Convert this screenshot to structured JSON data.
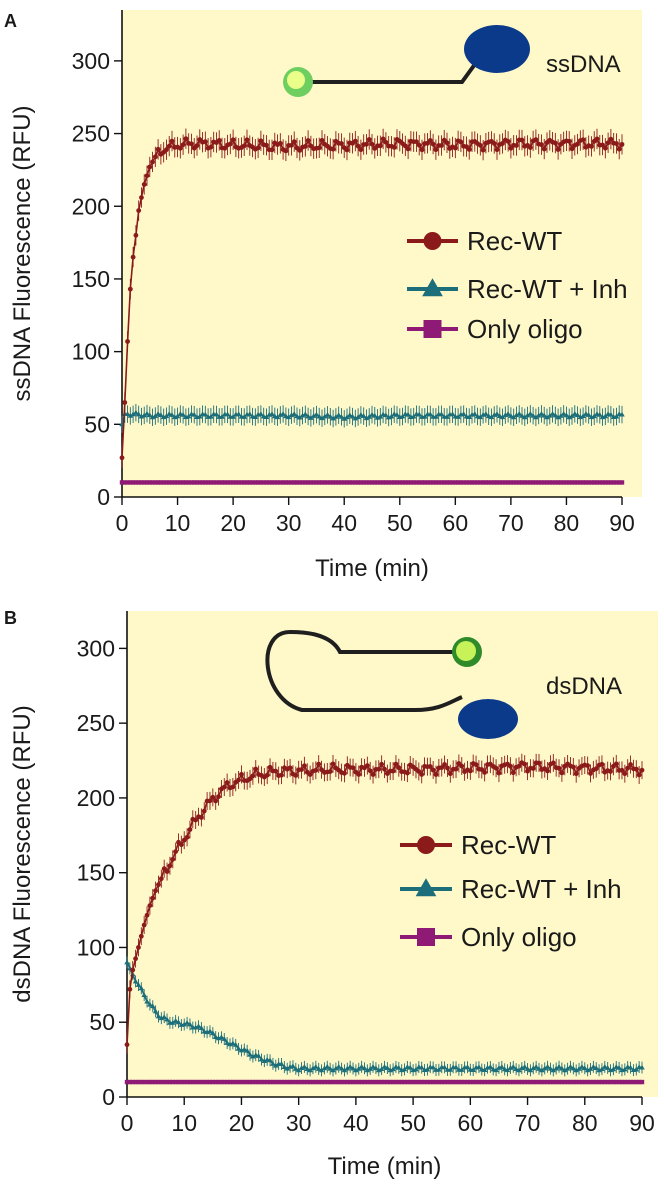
{
  "chart_data": [
    {
      "panel_label": "A",
      "type": "line",
      "title": "",
      "schematic_label": "ssDNA",
      "xlabel": "Time (min)",
      "ylabel": "ssDNA Fluorescence (RFU)",
      "xlim": [
        0,
        90
      ],
      "ylim": [
        0,
        335
      ],
      "xticks": [
        0,
        10,
        20,
        30,
        40,
        50,
        60,
        70,
        80,
        90
      ],
      "yticks": [
        0,
        50,
        100,
        150,
        200,
        250,
        300
      ],
      "background": "#fff9c9",
      "legend_position": "center-right",
      "series": [
        {
          "name": "Rec-WT",
          "marker": "circle",
          "color": "#8b1a1a",
          "x": [
            0,
            0.5,
            1,
            1.5,
            2,
            2.5,
            3,
            4,
            5,
            6,
            7,
            8,
            10,
            12,
            15,
            20,
            30,
            40,
            50,
            60,
            70,
            80,
            90
          ],
          "values": [
            27,
            65,
            107,
            143,
            165,
            180,
            197,
            215,
            227,
            234,
            238,
            240,
            242,
            243,
            243,
            242,
            241,
            242,
            243,
            242,
            243,
            243,
            243
          ],
          "error": 7
        },
        {
          "name": "Rec-WT + Inh",
          "marker": "triangle",
          "color": "#1b6e7a",
          "x": [
            0,
            0.5,
            1,
            2,
            5,
            10,
            20,
            30,
            40,
            50,
            60,
            70,
            80,
            90
          ],
          "values": [
            50,
            57,
            57,
            57,
            56,
            56,
            56,
            56,
            55,
            56,
            56,
            56,
            56,
            56
          ],
          "error": 6
        },
        {
          "name": "Only oligo",
          "marker": "square",
          "color": "#8e1a76",
          "x": [
            0,
            10,
            20,
            30,
            40,
            50,
            60,
            70,
            80,
            90
          ],
          "values": [
            10,
            10,
            10,
            10,
            10,
            10,
            10,
            10,
            10,
            10
          ],
          "error": 2
        }
      ]
    },
    {
      "panel_label": "B",
      "type": "line",
      "title": "",
      "schematic_label": "dsDNA",
      "xlabel": "Time (min)",
      "ylabel": "dsDNA Fluorescence (RFU)",
      "xlim": [
        0,
        90
      ],
      "ylim": [
        0,
        325
      ],
      "xticks": [
        0,
        10,
        20,
        30,
        40,
        50,
        60,
        70,
        80,
        90
      ],
      "yticks": [
        0,
        50,
        100,
        150,
        200,
        250,
        300
      ],
      "background": "#fff9c9",
      "legend_position": "center-right",
      "series": [
        {
          "name": "Rec-WT",
          "marker": "circle",
          "color": "#8b1a1a",
          "x": [
            0,
            0.5,
            1,
            2,
            3,
            4,
            5,
            6,
            8,
            10,
            12,
            14,
            16,
            18,
            20,
            22,
            25,
            28,
            30,
            35,
            40,
            50,
            60,
            70,
            80,
            90
          ],
          "values": [
            35,
            72,
            85,
            100,
            115,
            128,
            138,
            146,
            160,
            173,
            185,
            195,
            203,
            209,
            212,
            215,
            217,
            218,
            218,
            219,
            219,
            219,
            220,
            221,
            220,
            219
          ],
          "error": 6
        },
        {
          "name": "Rec-WT + Inh",
          "marker": "triangle",
          "color": "#1b6e7a",
          "x": [
            0,
            1,
            2,
            3,
            4,
            5,
            6,
            8,
            10,
            12,
            14,
            16,
            18,
            20,
            22,
            24,
            26,
            28,
            30,
            35,
            40,
            50,
            60,
            70,
            80,
            90
          ],
          "values": [
            90,
            82,
            75,
            68,
            62,
            57,
            53,
            50,
            49,
            47,
            44,
            40,
            36,
            32,
            28,
            25,
            22,
            20,
            19,
            19,
            19,
            19,
            19,
            19,
            19,
            19
          ],
          "error": 4
        },
        {
          "name": "Only oligo",
          "marker": "square",
          "color": "#8e1a76",
          "x": [
            0,
            10,
            20,
            30,
            40,
            50,
            60,
            70,
            80,
            90
          ],
          "values": [
            10,
            10,
            10,
            10,
            10,
            10,
            10,
            10,
            10,
            10
          ],
          "error": 2
        }
      ]
    }
  ]
}
